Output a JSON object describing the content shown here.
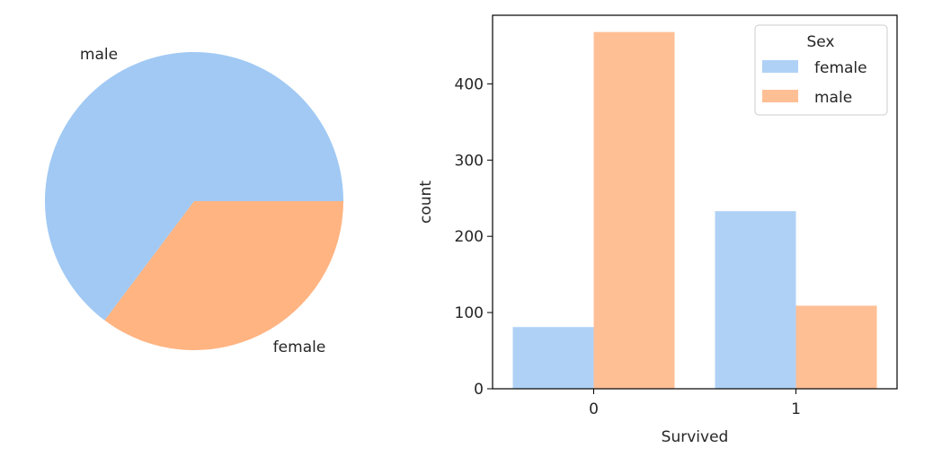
{
  "chart_data": [
    {
      "type": "pie",
      "labels": [
        "male",
        "female"
      ],
      "values": [
        577,
        314
      ],
      "colors": [
        "#a1c9f4",
        "#ffb482"
      ],
      "start_angle_deg": 0
    },
    {
      "type": "bar",
      "xlabel": "Survived",
      "ylabel": "count",
      "categories": [
        "0",
        "1"
      ],
      "series": [
        {
          "name": "female",
          "values": [
            81,
            233
          ],
          "color": "#a1c9f4"
        },
        {
          "name": "male",
          "values": [
            468,
            109
          ],
          "color": "#ffb482"
        }
      ],
      "ylim": [
        0,
        490
      ],
      "yticks": [
        0,
        100,
        200,
        300,
        400
      ],
      "legend": {
        "title": "Sex",
        "placement": "top-right"
      },
      "grid": false
    }
  ]
}
